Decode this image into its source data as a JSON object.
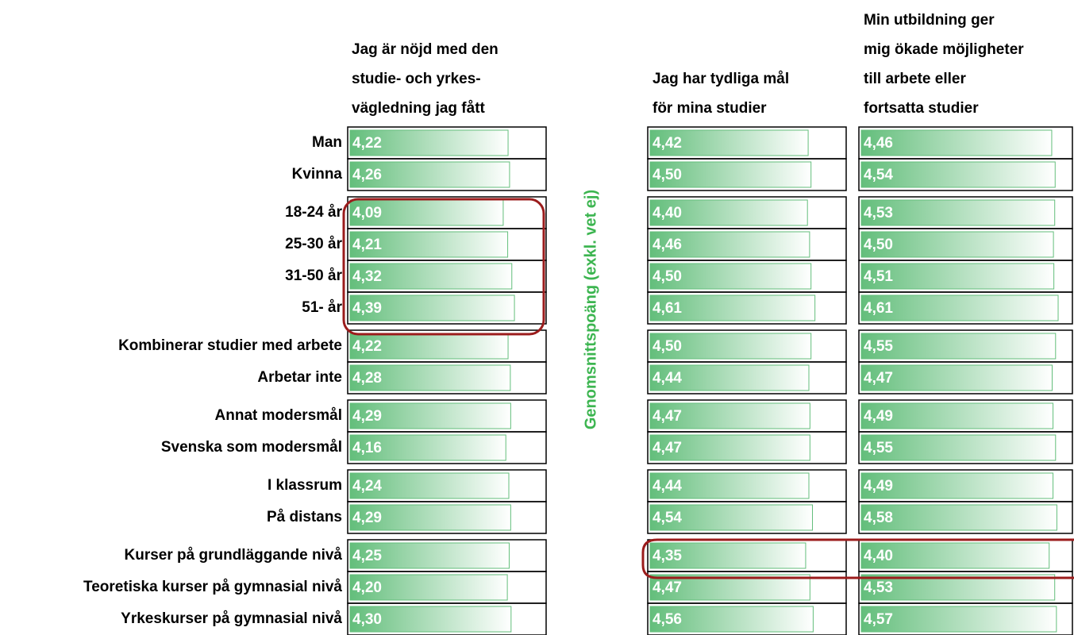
{
  "chart_data": {
    "type": "bar",
    "axis_label": "Genomsnittspoäng (exkl. vet ej)",
    "categories": [
      "Man",
      "Kvinna",
      "18-24 år",
      "25-30 år",
      "31-50 år",
      "51- år",
      "Kombinerar studier med arbete",
      "Arbetar inte",
      "Annat modersmål",
      "Svenska som modersmål",
      "I klassrum",
      "På distans",
      "Kurser på grundläggande nivå",
      "Teoretiska kurser på gymnasial nivå",
      "Yrkeskurser på gymnasial nivå"
    ],
    "series": [
      {
        "name": "Jag är nöjd med den\nstudie- och yrkes-\nvägledning jag fått",
        "color": "#63be7b",
        "xlim": [
          0,
          5.3
        ],
        "values": [
          4.22,
          4.26,
          4.09,
          4.21,
          4.32,
          4.39,
          4.22,
          4.28,
          4.29,
          4.16,
          4.24,
          4.29,
          4.25,
          4.2,
          4.3
        ],
        "value_labels": [
          "4,22",
          "4,26",
          "4,09",
          "4,21",
          "4,32",
          "4,39",
          "4,22",
          "4,28",
          "4,29",
          "4,16",
          "4,24",
          "4,29",
          "4,25",
          "4,20",
          "4,30"
        ]
      },
      {
        "name": "Jag har tydliga mål\nför mina studier",
        "color": "#63be7b",
        "xlim": [
          0,
          5.55
        ],
        "values": [
          4.42,
          4.5,
          4.4,
          4.46,
          4.5,
          4.61,
          4.5,
          4.44,
          4.47,
          4.47,
          4.44,
          4.54,
          4.35,
          4.47,
          4.56
        ],
        "value_labels": [
          "4,42",
          "4,50",
          "4,40",
          "4,46",
          "4,50",
          "4,61",
          "4,50",
          "4,44",
          "4,47",
          "4,47",
          "4,44",
          "4,54",
          "4,35",
          "4,47",
          "4,56"
        ]
      },
      {
        "name": "Min utbildning ger\nmig ökade möjligheter\ntill arbete eller\nfortsatta studier",
        "color": "#63be7b",
        "xlim": [
          0,
          5.0
        ],
        "values": [
          4.46,
          4.54,
          4.53,
          4.5,
          4.51,
          4.61,
          4.55,
          4.47,
          4.49,
          4.55,
          4.49,
          4.58,
          4.4,
          4.53,
          4.57
        ],
        "value_labels": [
          "4,46",
          "4,54",
          "4,53",
          "4,50",
          "4,51",
          "4,61",
          "4,55",
          "4,47",
          "4,49",
          "4,55",
          "4,49",
          "4,58",
          "4,40",
          "4,53",
          "4,57"
        ]
      }
    ]
  }
}
